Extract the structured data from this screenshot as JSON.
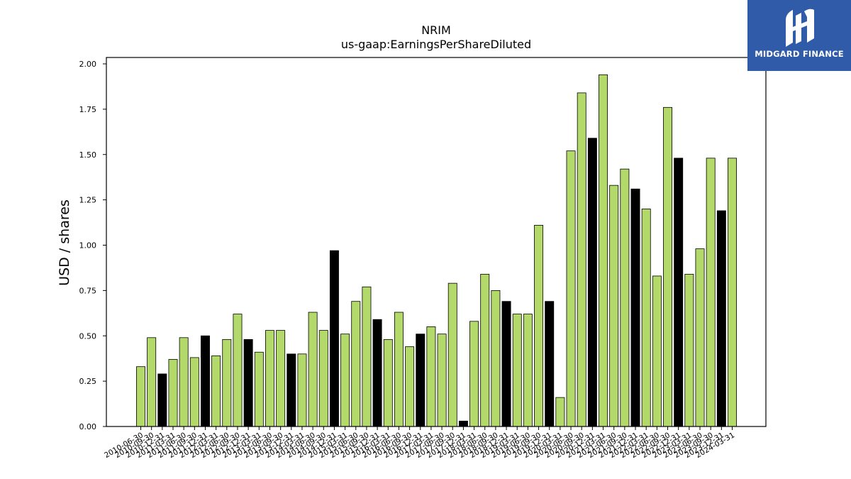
{
  "chart_data": {
    "type": "bar",
    "title": "NRIM",
    "subtitle": "us-gaap:EarningsPerShareDiluted",
    "ylabel": "USD / shares",
    "ylim": [
      0,
      2.05
    ],
    "yticks": [
      "0.00",
      "0.25",
      "0.50",
      "0.75",
      "1.00",
      "1.25",
      "1.50",
      "1.75",
      "2.00"
    ],
    "grid": false,
    "colors": {
      "quarter": "#b3d96b",
      "annual": "#000000",
      "edge": "#000000"
    },
    "categories": [
      "2010-06-30",
      "2010-09-30",
      "2010-12-31",
      "2011-03-31",
      "2011-06-30",
      "2011-09-30",
      "2011-12-31",
      "2012-03-31",
      "2012-06-30",
      "2012-09-30",
      "2012-12-31",
      "2013-03-31",
      "2013-06-30",
      "2013-09-30",
      "2013-12-31",
      "2014-03-31",
      "2014-06-30",
      "2014-09-30",
      "2014-12-31",
      "2015-03-31",
      "2015-06-30",
      "2015-09-30",
      "2015-12-31",
      "2016-03-31",
      "2016-06-30",
      "2016-09-30",
      "2016-12-31",
      "2017-03-31",
      "2017-06-30",
      "2017-09-30",
      "2017-12-31",
      "2018-03-31",
      "2018-06-30",
      "2018-09-30",
      "2018-12-31",
      "2019-03-31",
      "2019-06-30",
      "2019-09-30",
      "2019-12-31",
      "2020-03-31",
      "2020-06-30",
      "2020-09-30",
      "2020-12-31",
      "2021-03-31",
      "2021-06-30",
      "2021-09-30",
      "2021-12-31",
      "2022-03-31",
      "2022-06-30",
      "2022-09-30",
      "2022-12-31",
      "2023-03-31",
      "2023-06-30",
      "2023-09-30",
      "2023-12-31",
      "2024-03-31"
    ],
    "values": [
      0.33,
      0.49,
      0.29,
      0.37,
      0.49,
      0.38,
      0.5,
      0.39,
      0.48,
      0.62,
      0.48,
      0.41,
      0.53,
      0.53,
      0.4,
      0.4,
      0.63,
      0.53,
      0.97,
      0.51,
      0.69,
      0.77,
      0.59,
      0.48,
      0.63,
      0.44,
      0.51,
      0.55,
      0.51,
      0.79,
      0.03,
      0.58,
      0.84,
      0.75,
      0.69,
      0.62,
      0.62,
      1.11,
      0.69,
      0.16,
      1.52,
      1.84,
      1.59,
      1.94,
      1.33,
      1.42,
      1.31,
      1.2,
      0.83,
      1.76,
      1.48,
      0.84,
      0.98,
      1.48,
      1.19,
      1.48
    ],
    "annual": [
      false,
      false,
      true,
      false,
      false,
      false,
      true,
      false,
      false,
      false,
      true,
      false,
      false,
      false,
      true,
      false,
      false,
      false,
      true,
      false,
      false,
      false,
      true,
      false,
      false,
      false,
      true,
      false,
      false,
      false,
      true,
      false,
      false,
      false,
      true,
      false,
      false,
      false,
      true,
      false,
      false,
      false,
      true,
      false,
      false,
      false,
      true,
      false,
      false,
      false,
      true,
      false,
      false,
      false,
      true,
      false
    ]
  },
  "logo": {
    "text": "MIDGARD FINANCE",
    "background": "#2f5ba8"
  }
}
